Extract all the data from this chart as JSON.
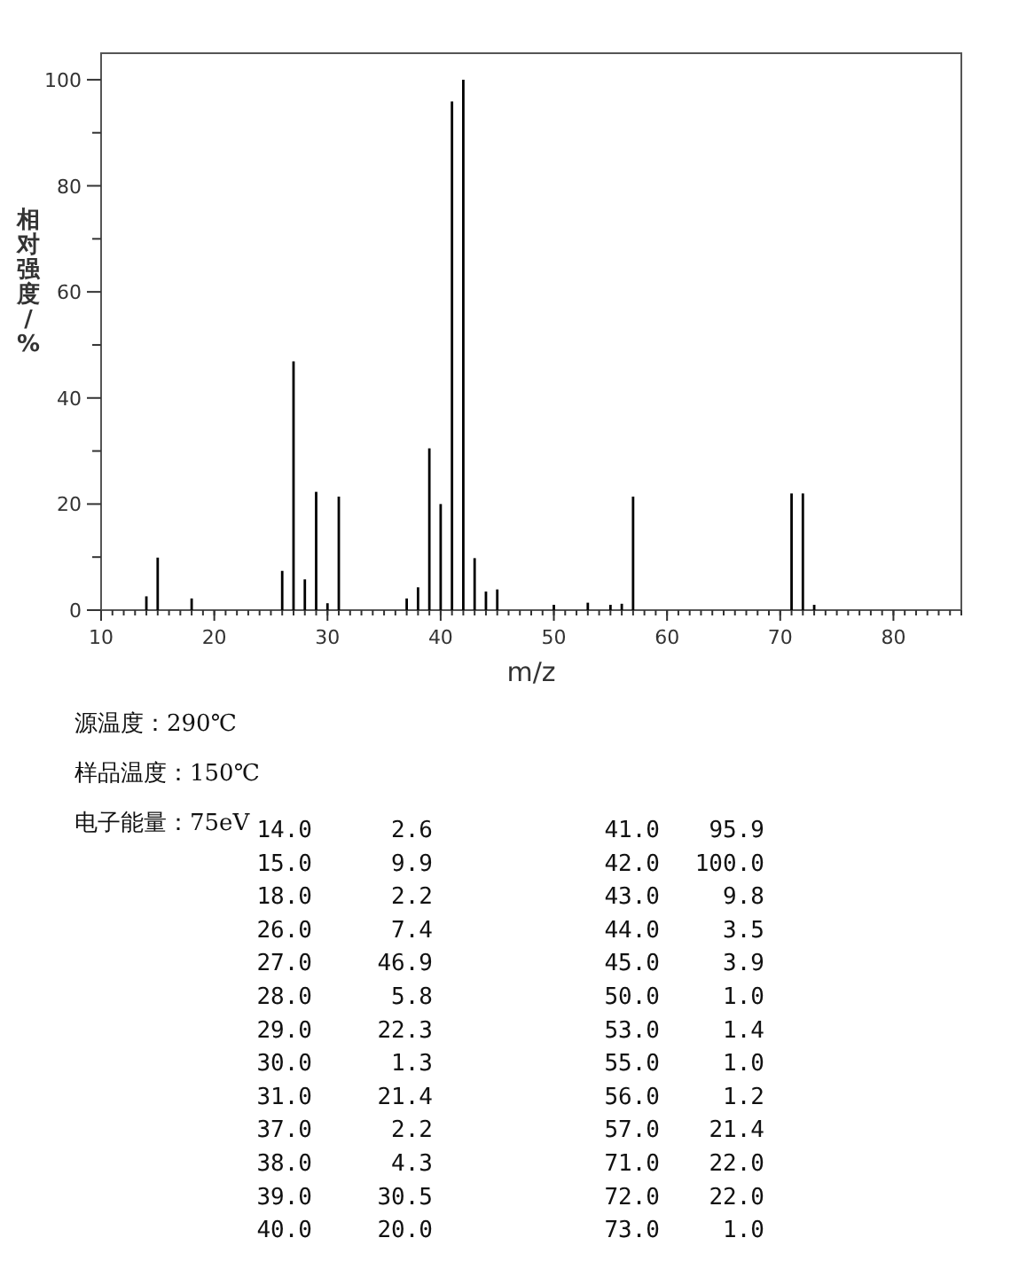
{
  "chart_data": {
    "type": "bar",
    "xlabel": "m/z",
    "ylabel": "相对强度/%",
    "x": [
      14,
      15,
      18,
      26,
      27,
      28,
      29,
      30,
      31,
      37,
      38,
      39,
      40,
      41,
      42,
      43,
      44,
      45,
      50,
      53,
      55,
      56,
      57,
      71,
      72,
      73
    ],
    "values": [
      2.6,
      9.9,
      2.2,
      7.4,
      46.9,
      5.8,
      22.3,
      1.3,
      21.4,
      2.2,
      4.3,
      30.5,
      20.0,
      95.9,
      100.0,
      9.8,
      3.5,
      3.9,
      1.0,
      1.4,
      1.0,
      1.2,
      21.4,
      22.0,
      22.0,
      1.0
    ],
    "color": "#000000",
    "xlim": [
      10,
      86
    ],
    "xticks": [
      10,
      20,
      30,
      40,
      50,
      60,
      70,
      80
    ],
    "ylim": [
      0,
      105
    ],
    "yticks": [
      0,
      20,
      40,
      60,
      80,
      100
    ],
    "grid": false,
    "annotations": [
      "源温度：290℃",
      "样品温度：150℃",
      "电子能量：75eV",
      "14.0",
      "2.6",
      "41.0",
      "95.9",
      "15.0",
      "9.9",
      "42.0",
      "100.0",
      "18.0",
      "2.2",
      "43.0",
      "9.8",
      "26.0",
      "7.4",
      "44.0",
      "3.5",
      "27.0",
      "46.9",
      "45.0",
      "3.9",
      "28.0",
      "5.8",
      "50.0",
      "1.0",
      "29.0",
      "22.3",
      "53.0",
      "1.4",
      "30.0",
      "1.3",
      "55.0",
      "1.0",
      "31.0",
      "21.4",
      "56.0",
      "1.2",
      "37.0",
      "2.2",
      "57.0",
      "21.4",
      "38.0",
      "4.3",
      "71.0",
      "22.0",
      "39.0",
      "30.5",
      "72.0",
      "22.0",
      "40.0",
      "20.0",
      "73.0",
      "1.0"
    ]
  }
}
